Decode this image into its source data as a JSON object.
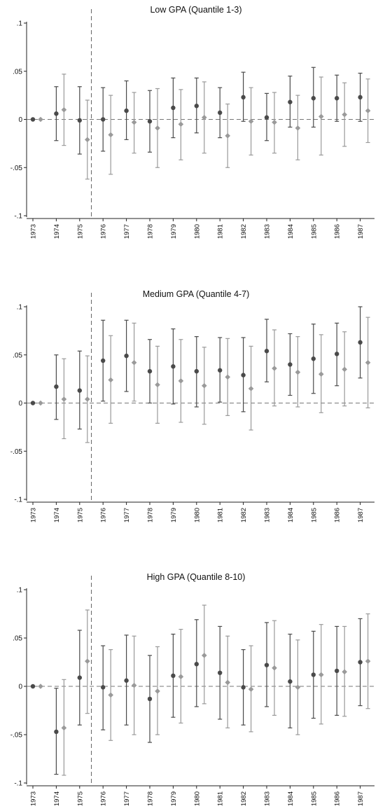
{
  "chart_data": [
    {
      "type": "scatter",
      "title": "Low GPA (Quantile 1-3)",
      "categories": [
        "1973",
        "1974",
        "1975",
        "1976",
        "1977",
        "1978",
        "1979",
        "1980",
        "1981",
        "1982",
        "1983",
        "1984",
        "1985",
        "1986",
        "1987"
      ],
      "ylim": [
        -0.1,
        0.1
      ],
      "yticks": [
        0.1,
        0.05,
        0,
        -0.05,
        -0.1
      ],
      "ytick_labels": [
        ".1",
        ".05",
        "0",
        "-.05",
        "-.1"
      ],
      "vline_between": [
        "1975",
        "1976"
      ],
      "grid": false,
      "series": [
        {
          "marker": "circle",
          "color": "#4a4a4a",
          "values": [
            0,
            0.006,
            -0.001,
            0,
            0.009,
            -0.002,
            0.012,
            0.014,
            0.007,
            0.023,
            0.002,
            0.018,
            0.022,
            0.022,
            0.023
          ],
          "lower": [
            0,
            -0.022,
            -0.036,
            -0.033,
            -0.021,
            -0.034,
            -0.019,
            -0.014,
            -0.019,
            -0.002,
            -0.022,
            -0.008,
            -0.008,
            -0.002,
            -0.002
          ],
          "upper": [
            0,
            0.034,
            0.034,
            0.033,
            0.04,
            0.03,
            0.043,
            0.043,
            0.033,
            0.049,
            0.027,
            0.045,
            0.054,
            0.046,
            0.048
          ]
        },
        {
          "marker": "diamond",
          "color": "#9a9a9a",
          "values": [
            0,
            0.01,
            -0.021,
            -0.016,
            -0.003,
            -0.009,
            -0.005,
            0.002,
            -0.017,
            -0.002,
            -0.003,
            -0.009,
            0.003,
            0.005,
            0.009
          ],
          "lower": [
            0,
            -0.027,
            -0.062,
            -0.057,
            -0.035,
            -0.05,
            -0.042,
            -0.035,
            -0.05,
            -0.037,
            -0.035,
            -0.042,
            -0.037,
            -0.028,
            -0.024
          ],
          "upper": [
            0,
            0.047,
            0.02,
            0.025,
            0.028,
            0.032,
            0.031,
            0.039,
            0.016,
            0.033,
            0.028,
            0.025,
            0.044,
            0.038,
            0.042
          ]
        }
      ]
    },
    {
      "type": "scatter",
      "title": "Medium GPA (Quantile 4-7)",
      "categories": [
        "1973",
        "1974",
        "1975",
        "1976",
        "1977",
        "1978",
        "1979",
        "1980",
        "1981",
        "1982",
        "1983",
        "1984",
        "1985",
        "1986",
        "1987"
      ],
      "ylim": [
        -0.1,
        0.1
      ],
      "yticks": [
        0.1,
        0.05,
        0,
        -0.05,
        -0.1
      ],
      "ytick_labels": [
        ".1",
        ".05",
        "0",
        "-.05",
        "-.1"
      ],
      "vline_between": [
        "1975",
        "1976"
      ],
      "grid": false,
      "series": [
        {
          "marker": "circle",
          "color": "#4a4a4a",
          "values": [
            0,
            0.017,
            0.013,
            0.044,
            0.049,
            0.033,
            0.038,
            0.033,
            0.034,
            0.029,
            0.054,
            0.04,
            0.046,
            0.051,
            0.063
          ],
          "lower": [
            0,
            -0.017,
            -0.027,
            0.002,
            0.012,
            0.0,
            -0.001,
            -0.004,
            0.001,
            -0.009,
            0.022,
            0.008,
            0.01,
            0.018,
            0.026
          ],
          "upper": [
            0,
            0.05,
            0.054,
            0.086,
            0.086,
            0.066,
            0.077,
            0.069,
            0.068,
            0.068,
            0.087,
            0.072,
            0.082,
            0.083,
            0.1
          ]
        },
        {
          "marker": "diamond",
          "color": "#9a9a9a",
          "values": [
            0,
            0.004,
            0.004,
            0.024,
            0.042,
            0.019,
            0.023,
            0.018,
            0.027,
            0.015,
            0.036,
            0.032,
            0.03,
            0.035,
            0.042
          ],
          "lower": [
            0,
            -0.037,
            -0.041,
            -0.021,
            0.002,
            -0.021,
            -0.02,
            -0.022,
            -0.013,
            -0.028,
            -0.003,
            -0.004,
            -0.01,
            -0.003,
            -0.005
          ],
          "upper": [
            0,
            0.046,
            0.049,
            0.07,
            0.083,
            0.059,
            0.066,
            0.058,
            0.067,
            0.059,
            0.076,
            0.069,
            0.071,
            0.074,
            0.089
          ]
        }
      ]
    },
    {
      "type": "scatter",
      "title": "High GPA (Quantile 8-10)",
      "categories": [
        "1973",
        "1974",
        "1975",
        "1976",
        "1977",
        "1978",
        "1979",
        "1980",
        "1981",
        "1982",
        "1983",
        "1984",
        "1985",
        "1986",
        "1987"
      ],
      "ylim": [
        -0.1,
        0.1
      ],
      "yticks": [
        0.1,
        0.05,
        0,
        -0.05,
        -0.1
      ],
      "ytick_labels": [
        ".1",
        ".05",
        "0",
        "-.05",
        "-.1"
      ],
      "vline_between": [
        "1975",
        "1976"
      ],
      "grid": false,
      "series": [
        {
          "marker": "circle",
          "color": "#4a4a4a",
          "values": [
            0,
            -0.047,
            0.009,
            -0.001,
            0.006,
            -0.013,
            0.011,
            0.023,
            0.014,
            -0.001,
            0.022,
            0.005,
            0.012,
            0.016,
            0.025
          ],
          "lower": [
            0,
            -0.091,
            -0.04,
            -0.045,
            -0.04,
            -0.058,
            -0.032,
            -0.021,
            -0.034,
            -0.04,
            -0.021,
            -0.043,
            -0.033,
            -0.03,
            -0.02
          ],
          "upper": [
            0,
            -0.002,
            0.058,
            0.042,
            0.053,
            0.032,
            0.054,
            0.069,
            0.062,
            0.038,
            0.066,
            0.054,
            0.057,
            0.062,
            0.07
          ]
        },
        {
          "marker": "diamond",
          "color": "#9a9a9a",
          "values": [
            0,
            -0.043,
            0.026,
            -0.009,
            0.001,
            -0.005,
            0.01,
            0.032,
            0.004,
            -0.003,
            0.019,
            -0.001,
            0.012,
            0.015,
            0.026
          ],
          "lower": [
            0,
            -0.092,
            -0.028,
            -0.056,
            -0.05,
            -0.05,
            -0.038,
            -0.018,
            -0.043,
            -0.047,
            -0.03,
            -0.05,
            -0.039,
            -0.031,
            -0.023
          ],
          "upper": [
            0,
            0.007,
            0.079,
            0.038,
            0.052,
            0.041,
            0.059,
            0.084,
            0.052,
            0.042,
            0.068,
            0.048,
            0.064,
            0.062,
            0.075
          ]
        }
      ]
    }
  ]
}
